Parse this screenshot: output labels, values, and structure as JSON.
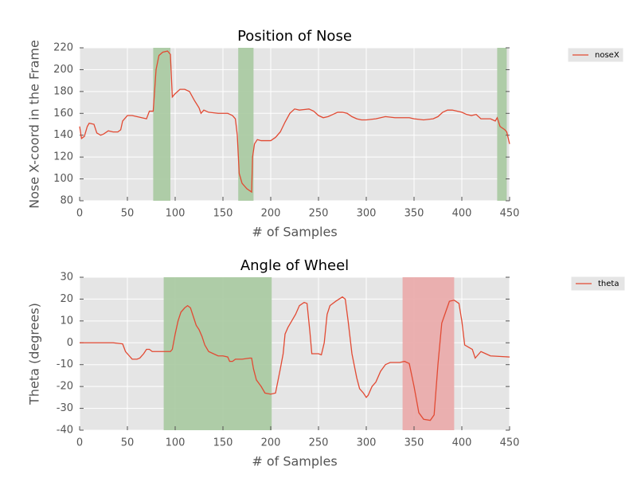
{
  "chart_data": [
    {
      "type": "line",
      "title": "Position of Nose",
      "x_label": "# of Samples",
      "y_label": "Nose X-coord in the Frame",
      "x": [
        0,
        2,
        5,
        8,
        10,
        15,
        18,
        22,
        25,
        30,
        35,
        40,
        43,
        45,
        50,
        55,
        60,
        65,
        70,
        73,
        77,
        80,
        83,
        87,
        92,
        95,
        97,
        100,
        105,
        110,
        115,
        120,
        125,
        127,
        130,
        135,
        145,
        155,
        160,
        163,
        165,
        167,
        170,
        175,
        180,
        181,
        183,
        186,
        190,
        200,
        205,
        210,
        215,
        220,
        225,
        230,
        240,
        245,
        250,
        255,
        260,
        265,
        270,
        275,
        280,
        285,
        290,
        295,
        300,
        310,
        320,
        330,
        340,
        345,
        350,
        360,
        370,
        375,
        380,
        385,
        390,
        395,
        400,
        405,
        410,
        415,
        420,
        425,
        430,
        435,
        437,
        440,
        445,
        447,
        450
      ],
      "series": [
        {
          "name": "noseX",
          "color": "#e24a33",
          "values": [
            148,
            137,
            139,
            148,
            151,
            150,
            142,
            140,
            141,
            144,
            143,
            143,
            145,
            153,
            158,
            158,
            157,
            156,
            155,
            162,
            162,
            200,
            213,
            216,
            217,
            214,
            175,
            178,
            182,
            182,
            180,
            172,
            165,
            160,
            163,
            161,
            160,
            160,
            158,
            155,
            140,
            105,
            96,
            91,
            88,
            120,
            132,
            136,
            135,
            135,
            138,
            143,
            152,
            160,
            164,
            163,
            164,
            162,
            158,
            156,
            157,
            159,
            161,
            161,
            160,
            157,
            155,
            154,
            154,
            155,
            157,
            156,
            156,
            156,
            155,
            154,
            155,
            157,
            161,
            163,
            163,
            162,
            161,
            159,
            158,
            159,
            155,
            155,
            155,
            153,
            156,
            148,
            145,
            143,
            132
          ]
        }
      ],
      "spans": [
        {
          "start": 77,
          "end": 95,
          "color": "#a7c9a0"
        },
        {
          "start": 166,
          "end": 182,
          "color": "#a7c9a0"
        },
        {
          "start": 437,
          "end": 447,
          "color": "#a7c9a0"
        }
      ],
      "xlim": [
        0,
        450
      ],
      "ylim": [
        80,
        220
      ],
      "xticks": [
        0,
        50,
        100,
        150,
        200,
        250,
        300,
        350,
        400,
        450
      ],
      "yticks": [
        80,
        100,
        120,
        140,
        160,
        180,
        200,
        220
      ],
      "grid": true,
      "legend": "outside-right"
    },
    {
      "type": "line",
      "title": "Angle of Wheel",
      "x_label": "# of Samples",
      "y_label": "Theta (degrees)",
      "x": [
        0,
        20,
        35,
        45,
        48,
        52,
        55,
        60,
        63,
        67,
        70,
        73,
        76,
        85,
        95,
        97,
        100,
        103,
        106,
        110,
        113,
        116,
        119,
        122,
        125,
        128,
        131,
        135,
        140,
        145,
        150,
        155,
        157,
        160,
        163,
        170,
        178,
        180,
        182,
        185,
        190,
        194,
        200,
        205,
        210,
        213,
        215,
        218,
        222,
        226,
        230,
        235,
        238,
        241,
        243,
        250,
        253,
        256,
        259,
        262,
        268,
        275,
        278,
        281,
        285,
        290,
        293,
        297,
        300,
        302,
        306,
        310,
        315,
        320,
        325,
        335,
        340,
        345,
        350,
        355,
        360,
        367,
        371,
        375,
        379,
        383,
        387,
        392,
        397,
        400,
        403,
        407,
        411,
        414,
        416,
        420,
        425,
        430,
        450
      ],
      "series": [
        {
          "name": "theta",
          "color": "#e24a33",
          "values": [
            0,
            0,
            0,
            -0.5,
            -4,
            -6,
            -7.5,
            -7.5,
            -7,
            -5,
            -3,
            -3,
            -4,
            -4,
            -4,
            -3,
            4,
            10,
            14,
            16,
            17,
            16,
            12,
            8,
            6,
            3,
            -1,
            -4,
            -5,
            -6,
            -6,
            -6.5,
            -8.5,
            -8.5,
            -7.5,
            -7.5,
            -7,
            -7,
            -12,
            -17,
            -20,
            -23,
            -23.5,
            -23,
            -12,
            -5,
            4,
            7,
            10,
            13,
            17,
            18.5,
            18,
            5,
            -5,
            -5,
            -5.5,
            0,
            13,
            17,
            19,
            21,
            20,
            10,
            -5,
            -16,
            -21,
            -23,
            -25,
            -24,
            -20,
            -18,
            -13,
            -10,
            -9,
            -9,
            -8.5,
            -9.5,
            -20,
            -32,
            -35,
            -35.5,
            -33,
            -10,
            9,
            14,
            19,
            19.5,
            18,
            10,
            -1,
            -2,
            -3,
            -7,
            -6,
            -4,
            -5,
            -6,
            -6.5
          ]
        }
      ],
      "spans": [
        {
          "start": 88,
          "end": 201,
          "color": "#a7c9a0"
        },
        {
          "start": 338,
          "end": 392,
          "color": "#eaa8a8"
        }
      ],
      "xlim": [
        0,
        450
      ],
      "ylim": [
        -40,
        30
      ],
      "xticks": [
        0,
        50,
        100,
        150,
        200,
        250,
        300,
        350,
        400,
        450
      ],
      "yticks": [
        -40,
        -30,
        -20,
        -10,
        0,
        10,
        20,
        30
      ],
      "grid": true,
      "legend": "outside-right"
    }
  ]
}
